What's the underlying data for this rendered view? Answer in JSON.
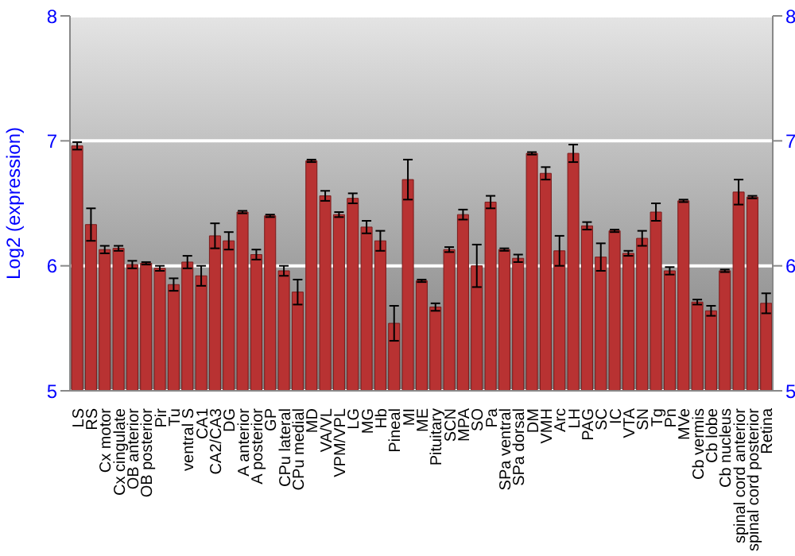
{
  "chart_data": {
    "type": "bar",
    "ylabel": "Log2 (expression)",
    "categories": [
      "LS",
      "RS",
      "Cx motor",
      "Cx cingulate",
      "OB anterior",
      "OB posterior",
      "Pir",
      "Tu",
      "ventral S",
      "CA1",
      "CA2/CA3",
      "DG",
      "A anterior",
      "A posterior",
      "GP",
      "CPu lateral",
      "CPu medial",
      "MD",
      "VA/VL",
      "VPM/VPL",
      "LG",
      "MG",
      "Hb",
      "Pineal",
      "MI",
      "ME",
      "Pituitary",
      "SCN",
      "MPA",
      "SO",
      "Pa",
      "SPa ventral",
      "SPa dorsal",
      "DM",
      "VMH",
      "Arc",
      "LH",
      "PAG",
      "SC",
      "IC",
      "VTA",
      "SN",
      "Tg",
      "Pn",
      "MVe",
      "Cb vermis",
      "Cb lobe",
      "Cb nucleus",
      "spinal cord anterior",
      "spinal cord posterior",
      "Retina"
    ],
    "values": [
      6.96,
      6.33,
      6.13,
      6.14,
      6.01,
      6.02,
      5.98,
      5.85,
      6.03,
      5.92,
      6.24,
      6.2,
      6.43,
      6.09,
      6.4,
      5.96,
      5.79,
      6.84,
      6.56,
      6.41,
      6.54,
      6.31,
      6.2,
      5.54,
      6.69,
      5.88,
      5.67,
      6.13,
      6.41,
      6.0,
      6.51,
      6.13,
      6.06,
      6.9,
      6.74,
      6.12,
      6.9,
      6.32,
      6.07,
      6.28,
      6.1,
      6.22,
      6.43,
      5.96,
      6.52,
      5.71,
      5.64,
      5.96,
      6.59,
      6.55,
      5.7
    ],
    "errors": [
      0.03,
      0.13,
      0.03,
      0.02,
      0.03,
      0.01,
      0.02,
      0.05,
      0.05,
      0.08,
      0.1,
      0.07,
      0.01,
      0.04,
      0.01,
      0.04,
      0.1,
      0.01,
      0.04,
      0.02,
      0.04,
      0.05,
      0.08,
      0.14,
      0.16,
      0.01,
      0.03,
      0.02,
      0.04,
      0.17,
      0.05,
      0.01,
      0.03,
      0.01,
      0.05,
      0.12,
      0.07,
      0.03,
      0.11,
      0.01,
      0.02,
      0.06,
      0.07,
      0.03,
      0.01,
      0.02,
      0.04,
      0.01,
      0.1,
      0.01,
      0.08
    ],
    "color": "#b83232",
    "ylim": [
      5,
      8
    ],
    "yticks": [
      5,
      6,
      7,
      8
    ],
    "y2lim": [
      5,
      8
    ],
    "y2ticks": [
      5,
      6,
      7,
      8
    ],
    "grid": "y"
  }
}
